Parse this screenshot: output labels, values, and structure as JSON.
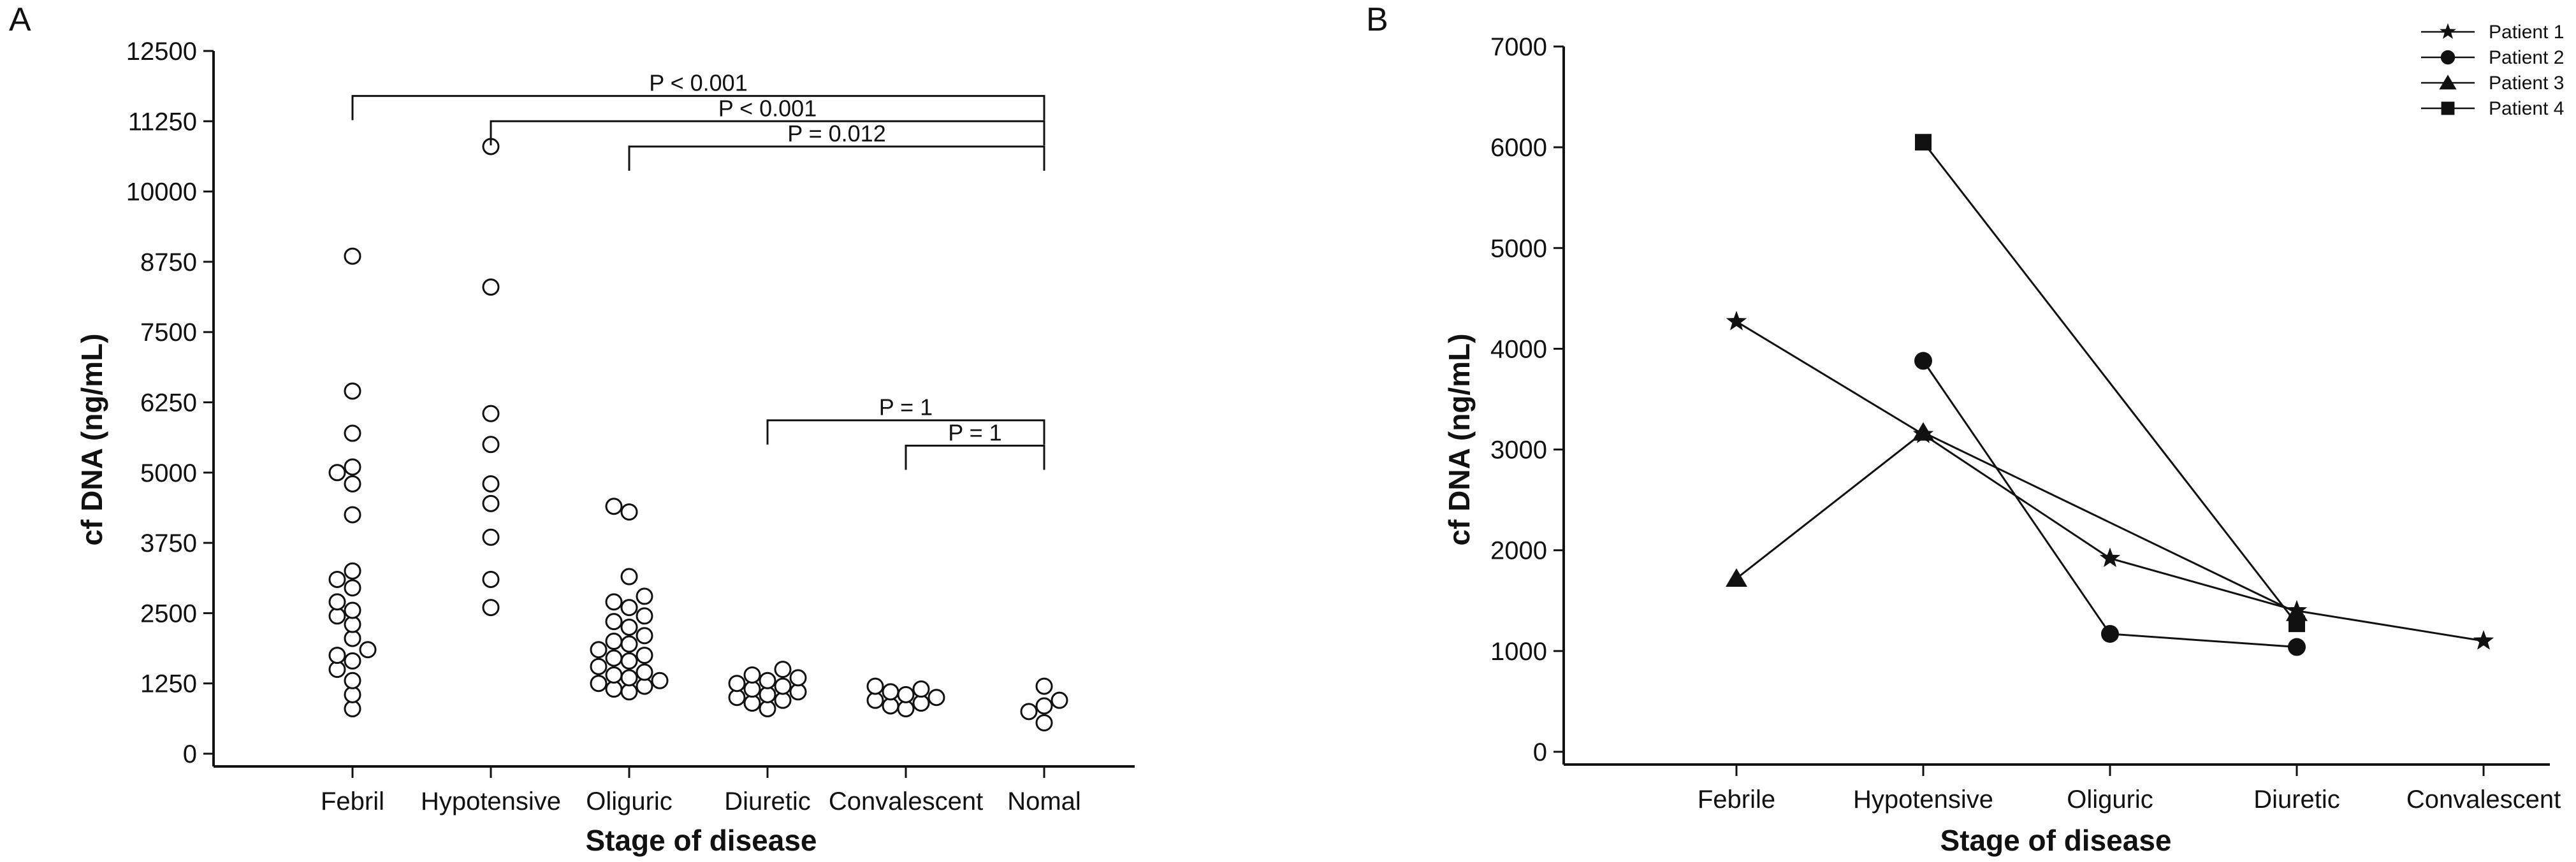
{
  "chart_data": [
    {
      "panel": "A",
      "type": "scatter",
      "xlabel": "Stage of disease",
      "ylabel": "cf DNA (ng/mL)",
      "categories": [
        "Febril",
        "Hypotensive",
        "Oliguric",
        "Diuretic",
        "Convalescent",
        "Nomal"
      ],
      "yticks": [
        "0",
        "1250",
        "2500",
        "3750",
        "5000",
        "6250",
        "7500",
        "8750",
        "10000",
        "11250",
        "12500"
      ],
      "ylim": [
        0,
        12500
      ],
      "grid": false,
      "points": [
        [
          800,
          1050,
          1300,
          1500,
          1650,
          1750,
          1850,
          2050,
          2300,
          2450,
          2550,
          2700,
          2950,
          3100,
          3250,
          4250,
          4800,
          5000,
          5100,
          5700,
          6450,
          8850
        ],
        [
          2600,
          3100,
          3850,
          4450,
          4800,
          5500,
          6050,
          8300,
          10800
        ],
        [
          1100,
          1150,
          1200,
          1250,
          1300,
          1350,
          1400,
          1450,
          1550,
          1650,
          1700,
          1750,
          1850,
          1950,
          2000,
          2100,
          2250,
          2350,
          2450,
          2600,
          2700,
          2800,
          3150,
          4300,
          4400
        ],
        [
          800,
          900,
          950,
          1000,
          1050,
          1100,
          1150,
          1200,
          1250,
          1300,
          1350,
          1400,
          1500
        ],
        [
          800,
          850,
          900,
          950,
          1000,
          1050,
          1100,
          1150,
          1200
        ],
        [
          550,
          750,
          850,
          950,
          1200
        ]
      ],
      "comparisons": [
        {
          "from": "Febril",
          "to": "Nomal",
          "label": "P < 0.001"
        },
        {
          "from": "Hypotensive",
          "to": "Nomal",
          "label": "P < 0.001"
        },
        {
          "from": "Oliguric",
          "to": "Nomal",
          "label": "P = 0.012"
        },
        {
          "from": "Diuretic",
          "to": "Nomal",
          "label": "P = 1"
        },
        {
          "from": "Convalescent",
          "to": "Nomal",
          "label": "P = 1"
        }
      ]
    },
    {
      "panel": "B",
      "type": "line",
      "xlabel": "Stage of disease",
      "ylabel": "cf DNA (ng/mL)",
      "categories": [
        "Febrile",
        "Hypotensive",
        "Oliguric",
        "Diuretic",
        "Convalescent"
      ],
      "yticks": [
        "0",
        "1000",
        "2000",
        "3000",
        "4000",
        "5000",
        "6000",
        "7000"
      ],
      "ylim": [
        0,
        7000
      ],
      "grid": false,
      "legend_position": "top-right",
      "series": [
        {
          "name": "Patient 1",
          "marker": "star",
          "values": [
            4270,
            3150,
            1920,
            1400,
            1100
          ]
        },
        {
          "name": "Patient 2",
          "marker": "circle",
          "values": [
            null,
            3880,
            1170,
            1040,
            null
          ]
        },
        {
          "name": "Patient 3",
          "marker": "triangle",
          "values": [
            1720,
            3170,
            null,
            1380,
            null
          ]
        },
        {
          "name": "Patient 4",
          "marker": "square",
          "values": [
            null,
            6050,
            null,
            1270,
            null
          ]
        }
      ]
    }
  ]
}
